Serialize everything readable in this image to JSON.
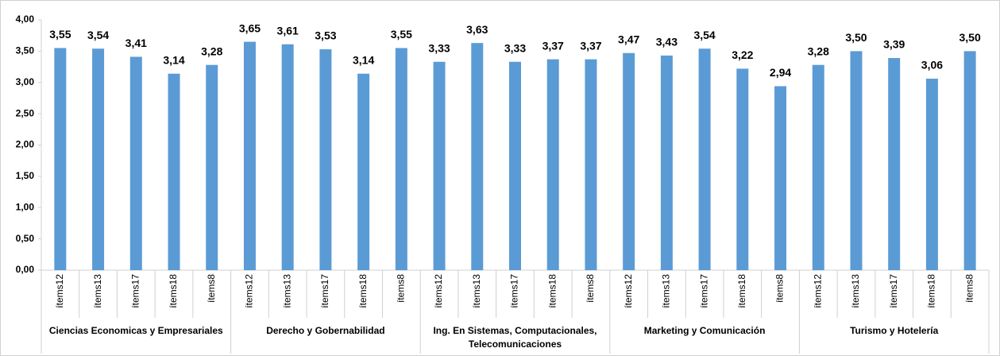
{
  "chart_data": {
    "type": "bar",
    "color": "#5b9bd5",
    "grid": false,
    "ylim": [
      0,
      4
    ],
    "yticks": [
      {
        "value": 0,
        "label": "0,00"
      },
      {
        "value": 0.5,
        "label": "0,50"
      },
      {
        "value": 1,
        "label": "1,00"
      },
      {
        "value": 1.5,
        "label": "1,50"
      },
      {
        "value": 2,
        "label": "2,00"
      },
      {
        "value": 2.5,
        "label": "2,50"
      },
      {
        "value": 3,
        "label": "3,00"
      },
      {
        "value": 3.5,
        "label": "3,50"
      },
      {
        "value": 4,
        "label": "4,00"
      }
    ],
    "groups": [
      {
        "name": "Ciencias Economicas y Empresariales",
        "categories": [
          "ítems12",
          "ítems13",
          "ítems17",
          "ítems18",
          "ítems8"
        ],
        "values": [
          3.55,
          3.54,
          3.41,
          3.14,
          3.28
        ],
        "value_labels": [
          "3,55",
          "3,54",
          "3,41",
          "3,14",
          "3,28"
        ]
      },
      {
        "name": "Derecho y Gobernabilidad",
        "categories": [
          "ítems12",
          "ítems13",
          "ítems17",
          "ítems18",
          "ítems8"
        ],
        "values": [
          3.65,
          3.61,
          3.53,
          3.14,
          3.55
        ],
        "value_labels": [
          "3,65",
          "3,61",
          "3,53",
          "3,14",
          "3,55"
        ]
      },
      {
        "name": "Ing. En Sistemas, Computacionales, Telecomunicaciones",
        "categories": [
          "ítems12",
          "ítems13",
          "ítems17",
          "ítems18",
          "ítems8"
        ],
        "values": [
          3.33,
          3.63,
          3.33,
          3.37,
          3.37
        ],
        "value_labels": [
          "3,33",
          "3,63",
          "3,33",
          "3,37",
          "3,37"
        ]
      },
      {
        "name": "Marketing y Comunicación",
        "categories": [
          "ítems12",
          "ítems13",
          "ítems17",
          "ítems18",
          "ítems8"
        ],
        "values": [
          3.47,
          3.43,
          3.54,
          3.22,
          2.94
        ],
        "value_labels": [
          "3,47",
          "3,43",
          "3,54",
          "3,22",
          "2,94"
        ]
      },
      {
        "name": "Turismo y Hotelería",
        "categories": [
          "ítems12",
          "ítems13",
          "ítems17",
          "ítems18",
          "ítems8"
        ],
        "values": [
          3.28,
          3.5,
          3.39,
          3.06,
          3.5
        ],
        "value_labels": [
          "3,28",
          "3,50",
          "3,39",
          "3,06",
          "3,50"
        ]
      }
    ]
  }
}
